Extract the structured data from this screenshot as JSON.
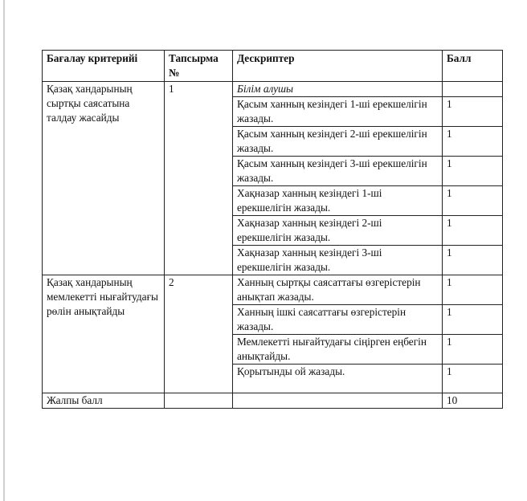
{
  "headers": {
    "criteria": "Бағалау критерийі",
    "task": "Тапсырма №",
    "descriptor": "Дескриптер",
    "score": "Балл"
  },
  "section1": {
    "criteria": "Қазақ хандарының сыртқы саясатына талдау жасайды",
    "task": "1",
    "intro": "Білім алушы",
    "rows": [
      {
        "descriptor": "Қасым ханның кезіндегі 1-ші ерекшелігін жазады.",
        "score": "1"
      },
      {
        "descriptor": "Қасым ханның кезіндегі 2-ші ерекшелігін  жазады.",
        "score": "1"
      },
      {
        "descriptor": "Қасым ханның кезіндегі 3-ші ерекшелігін жазады.",
        "score": "1"
      },
      {
        "descriptor": "Хақназар ханның кезіндегі 1-ші ерекшелігін жазады.",
        "score": "1"
      },
      {
        "descriptor": "Хақназар ханның кезіндегі 2-ші ерекшелігін  жазады.",
        "score": "1"
      },
      {
        "descriptor": "Хақназар ханның кезіндегі 3-ші ерекшелігін  жазады.",
        "score": "1"
      }
    ]
  },
  "section2": {
    "criteria": "Қазақ хандарының мемлекетті нығайтудағы рөлін анықтайды",
    "task": "2",
    "rows": [
      {
        "descriptor": "Ханның  сыртқы саясаттағы өзгерістерін анықтап жазады.",
        "score": "1"
      },
      {
        "descriptor": "Ханның ішкі  саясаттағы өзгерістерін жазады.",
        "score": "1"
      },
      {
        "descriptor": "Мемлекетті нығайтудағы сіңірген еңбегін анықтайды.",
        "score": "1"
      },
      {
        "descriptor": "Қорытынды ой жазады.",
        "score": "1"
      }
    ]
  },
  "total": {
    "label": "Жалпы балл",
    "score": "10"
  }
}
